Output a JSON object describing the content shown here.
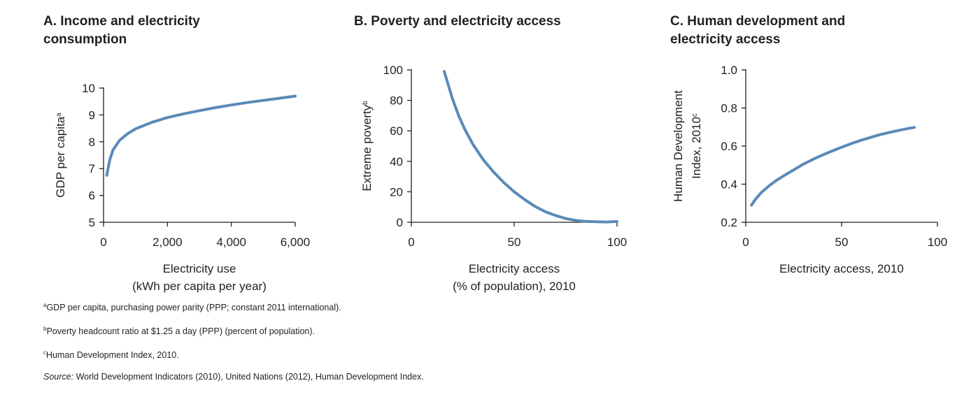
{
  "chart_data": [
    {
      "type": "line",
      "title": "A. Income and electricity consumption",
      "xlabel_line1": "Electricity use",
      "xlabel_line2": "(kWh per capita per year)",
      "ylabel": "GDP per capita",
      "ylabel_sup": "a",
      "xlim": [
        0,
        6000
      ],
      "ylim": [
        5,
        10
      ],
      "xticks": [
        0,
        2000,
        4000,
        6000
      ],
      "xtick_labels": [
        "0",
        "2,000",
        "4,000",
        "6,000"
      ],
      "yticks": [
        5,
        6,
        7,
        8,
        9,
        10
      ],
      "ytick_labels": [
        "5",
        "6",
        "7",
        "8",
        "9",
        "10"
      ],
      "series": [
        {
          "name": "GDP per capita",
          "x": [
            100,
            200,
            300,
            500,
            750,
            1000,
            1500,
            2000,
            2500,
            3000,
            3500,
            4000,
            4500,
            5000,
            5500,
            6000
          ],
          "y": [
            6.75,
            7.35,
            7.7,
            8.05,
            8.3,
            8.48,
            8.72,
            8.9,
            9.04,
            9.16,
            9.27,
            9.37,
            9.46,
            9.54,
            9.62,
            9.7
          ]
        }
      ]
    },
    {
      "type": "line",
      "title": "B. Poverty and electricity access",
      "xlabel_line1": "Electricity access",
      "xlabel_line2": "(% of population), 2010",
      "ylabel": "Extreme poverty",
      "ylabel_sup": "b",
      "xlim": [
        0,
        100
      ],
      "ylim": [
        0,
        100
      ],
      "xticks": [
        0,
        50,
        100
      ],
      "xtick_labels": [
        "0",
        "50",
        "100"
      ],
      "yticks": [
        0,
        20,
        40,
        60,
        80,
        100
      ],
      "ytick_labels": [
        "0",
        "20",
        "40",
        "60",
        "80",
        "100"
      ],
      "series": [
        {
          "name": "Extreme poverty",
          "x": [
            16,
            18,
            20,
            23,
            26,
            30,
            35,
            40,
            45,
            50,
            55,
            60,
            65,
            70,
            75,
            80,
            85,
            90,
            95,
            100
          ],
          "y": [
            99,
            90,
            81,
            70,
            61,
            51,
            41,
            33,
            26,
            20,
            15,
            10.5,
            7,
            4.5,
            2.5,
            1.2,
            0.6,
            0.3,
            0.2,
            0.5
          ]
        }
      ]
    },
    {
      "type": "line",
      "title": "C. Human development and electricity access",
      "xlabel_line1": "Electricity access, 2010",
      "xlabel_line2": "",
      "ylabel_line1": "Human Development",
      "ylabel_line2": "Index, 2010",
      "ylabel_sup": "c",
      "xlim": [
        0,
        100
      ],
      "ylim": [
        0.2,
        1.0
      ],
      "xticks": [
        0,
        50,
        100
      ],
      "xtick_labels": [
        "0",
        "50",
        "100"
      ],
      "yticks": [
        0.2,
        0.4,
        0.6,
        0.8,
        1.0
      ],
      "ytick_labels": [
        "0.2",
        "0.4",
        "0.6",
        "0.8",
        "1.0"
      ],
      "series": [
        {
          "name": "Human Development Index",
          "x": [
            3,
            5,
            8,
            12,
            16,
            20,
            25,
            30,
            35,
            40,
            45,
            50,
            55,
            60,
            65,
            70,
            75,
            80,
            85,
            88
          ],
          "y": [
            0.29,
            0.32,
            0.355,
            0.39,
            0.42,
            0.445,
            0.475,
            0.505,
            0.53,
            0.553,
            0.574,
            0.594,
            0.613,
            0.63,
            0.645,
            0.66,
            0.672,
            0.683,
            0.693,
            0.698
          ]
        }
      ]
    }
  ],
  "notes": {
    "a_sup": "a",
    "a_text": "GDP per capita, purchasing power parity (PPP; constant 2011 international).",
    "b_sup": "b",
    "b_text": "Poverty headcount ratio at $1.25 a day (PPP) (percent of population).",
    "c_sup": "c",
    "c_text": "Human Development Index, 2010.",
    "source_prefix": "Source:",
    "source_text": " World Development Indicators (2010), United Nations (2012), Human Development Index."
  },
  "colors": {
    "line": "#5a8ab8",
    "axis": "#231f20"
  }
}
